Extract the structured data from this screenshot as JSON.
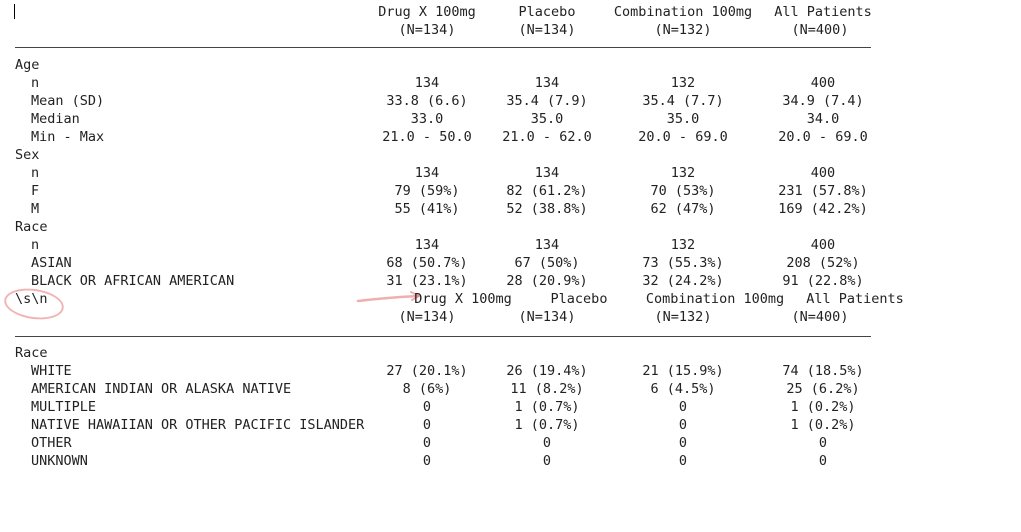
{
  "columns": [
    {
      "name": "Drug X 100mg",
      "n": "(N=134)"
    },
    {
      "name": "Placebo",
      "n": "(N=134)"
    },
    {
      "name": "Combination 100mg",
      "n": "(N=132)"
    },
    {
      "name": "All Patients",
      "n": "(N=400)"
    }
  ],
  "table1": [
    {
      "label": "Age",
      "level": 0,
      "values": [
        "",
        "",
        "",
        ""
      ]
    },
    {
      "label": "n",
      "level": 1,
      "values": [
        "134",
        "134",
        "132",
        "400"
      ]
    },
    {
      "label": "Mean (SD)",
      "level": 1,
      "values": [
        "33.8 (6.6)",
        "35.4 (7.9)",
        "35.4 (7.7)",
        "34.9 (7.4)"
      ]
    },
    {
      "label": "Median",
      "level": 1,
      "values": [
        "33.0",
        "35.0",
        "35.0",
        "34.0"
      ]
    },
    {
      "label": "Min - Max",
      "level": 1,
      "values": [
        "21.0 - 50.0",
        "21.0 - 62.0",
        "20.0 - 69.0",
        "20.0 - 69.0"
      ]
    },
    {
      "label": "Sex",
      "level": 0,
      "values": [
        "",
        "",
        "",
        ""
      ]
    },
    {
      "label": "n",
      "level": 1,
      "values": [
        "134",
        "134",
        "132",
        "400"
      ]
    },
    {
      "label": "F",
      "level": 1,
      "values": [
        "79 (59%)",
        "82 (61.2%)",
        "70 (53%)",
        "231 (57.8%)"
      ]
    },
    {
      "label": "M",
      "level": 1,
      "values": [
        "55 (41%)",
        "52 (38.8%)",
        "62 (47%)",
        "169 (42.2%)"
      ]
    },
    {
      "label": "Race",
      "level": 0,
      "values": [
        "",
        "",
        "",
        ""
      ]
    },
    {
      "label": "n",
      "level": 1,
      "values": [
        "134",
        "134",
        "132",
        "400"
      ]
    },
    {
      "label": "ASIAN",
      "level": 1,
      "values": [
        "68 (50.7%)",
        "67 (50%)",
        "73 (55.3%)",
        "208 (52%)"
      ]
    },
    {
      "label": "BLACK OR AFRICAN AMERICAN",
      "level": 1,
      "values": [
        "31 (23.1%)",
        "28 (20.9%)",
        "32 (24.2%)",
        "91 (22.8%)"
      ]
    }
  ],
  "separator_text": "\\s\\n",
  "table2": [
    {
      "label": "Race",
      "level": 0,
      "values": [
        "",
        "",
        "",
        ""
      ]
    },
    {
      "label": "WHITE",
      "level": 1,
      "values": [
        "27 (20.1%)",
        "26 (19.4%)",
        "21 (15.9%)",
        "74 (18.5%)"
      ]
    },
    {
      "label": "AMERICAN INDIAN OR ALASKA NATIVE",
      "level": 1,
      "values": [
        "8 (6%)",
        "11 (8.2%)",
        "6 (4.5%)",
        "25 (6.2%)"
      ]
    },
    {
      "label": "MULTIPLE",
      "level": 1,
      "values": [
        "0",
        "1 (0.7%)",
        "0",
        "1 (0.2%)"
      ]
    },
    {
      "label": "NATIVE HAWAIIAN OR OTHER PACIFIC ISLANDER",
      "level": 1,
      "values": [
        "0",
        "1 (0.7%)",
        "0",
        "1 (0.2%)"
      ]
    },
    {
      "label": "OTHER",
      "level": 1,
      "values": [
        "0",
        "0",
        "0",
        "0"
      ]
    },
    {
      "label": "UNKNOWN",
      "level": 1,
      "values": [
        "0",
        "0",
        "0",
        "0"
      ]
    }
  ],
  "annotation_color": "#e67878"
}
